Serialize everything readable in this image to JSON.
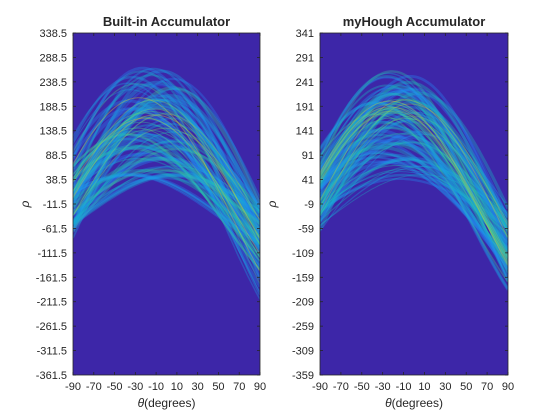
{
  "chart_data": [
    {
      "type": "heatmap",
      "title": "Built-in Accumulator",
      "xlabel_symbol": "θ",
      "xlabel_rest": "(degrees)",
      "ylabel": "ρ",
      "xlim": [
        -90,
        90
      ],
      "ylim": [
        -361.5,
        338.5
      ],
      "xticks": [
        -90,
        -70,
        -50,
        -30,
        -10,
        10,
        30,
        50,
        70,
        90
      ],
      "yticks": [
        338.5,
        288.5,
        238.5,
        188.5,
        138.5,
        88.5,
        38.5,
        -11.5,
        -61.5,
        -111.5,
        -161.5,
        -211.5,
        -261.5,
        -311.5,
        -361.5
      ],
      "colormap": "parula",
      "background_color": "#3d26a8"
    },
    {
      "type": "heatmap",
      "title": "myHough Accumulator",
      "xlabel_symbol": "θ",
      "xlabel_rest": "(degrees)",
      "ylabel": "ρ",
      "xlim": [
        -90,
        90
      ],
      "ylim": [
        -359,
        341
      ],
      "xticks": [
        -90,
        -70,
        -50,
        -30,
        -10,
        10,
        30,
        50,
        70,
        90
      ],
      "yticks": [
        341,
        291,
        241,
        191,
        141,
        91,
        41,
        -9,
        -59,
        -109,
        -159,
        -209,
        -259,
        -309,
        -359
      ],
      "colormap": "parula",
      "background_color": "#3d26a8"
    }
  ]
}
